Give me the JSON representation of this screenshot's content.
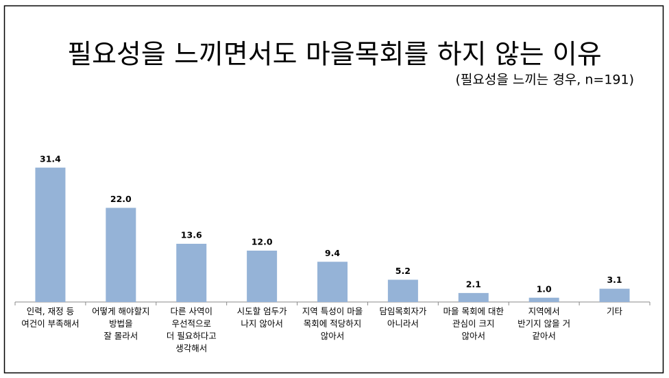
{
  "chart_data": {
    "type": "bar",
    "title": "필요성을 느끼면서도 마을목회를 하지 않는 이유",
    "subtitle": "(필요성을 느끼는 경우, n=191)",
    "categories": [
      "인력, 재정 등\n여건이 부족해서",
      "어떻게 해야할지\n방법을\n잘 몰라서",
      "다른 사역이\n우선적으로\n더 필요하다고\n생각해서",
      "시도할 엄두가\n나지 않아서",
      "지역 특성이 마을\n목회에 적당하지\n않아서",
      "담임목회자가\n아니라서",
      "마을 목회에 대한\n관심이 크지\n않아서",
      "지역에서\n반기지 않을 거\n같아서",
      "기타"
    ],
    "values": [
      31.4,
      22.0,
      13.6,
      12.0,
      9.4,
      5.2,
      2.1,
      1.0,
      3.1
    ],
    "value_labels": [
      "31.4",
      "22.0",
      "13.6",
      "12.0",
      "9.4",
      "5.2",
      "2.1",
      "1.0",
      "3.1"
    ],
    "color": "#95b3d7"
  }
}
